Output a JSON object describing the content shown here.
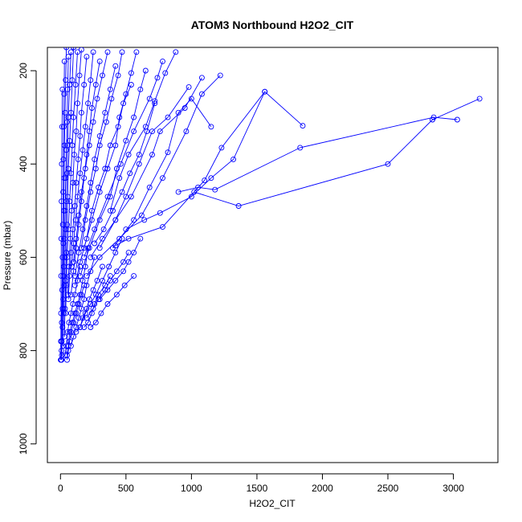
{
  "chart_data": {
    "type": "line",
    "title": "ATOM3 Northbound H2O2_CIT",
    "xlabel": "H2O2_CIT",
    "ylabel": "Pressure (mbar)",
    "xlim": [
      -100,
      3340
    ],
    "ylim": [
      1040,
      150
    ],
    "y_reversed": true,
    "x_ticks": [
      0,
      500,
      1000,
      1500,
      2000,
      2500,
      3000
    ],
    "y_ticks": [
      200,
      400,
      600,
      800,
      1000
    ],
    "grid": false,
    "legend": "none",
    "color": "#0000ff",
    "marker": "open-circle",
    "series": [
      {
        "x": [
          3200,
          2840,
          2500,
          1360,
          1020
        ],
        "y": [
          260,
          305,
          400,
          490,
          460
        ]
      },
      {
        "x": [
          3030,
          2850,
          1830,
          1180,
          1050,
          900
        ],
        "y": [
          305,
          300,
          365,
          455,
          450,
          460
        ]
      },
      {
        "x": [
          1850,
          1560,
          1230,
          1100,
          780,
          520,
          420
        ],
        "y": [
          318,
          245,
          365,
          435,
          535,
          560,
          575
        ]
      },
      {
        "x": [
          1560,
          1320,
          1150,
          1000,
          760,
          640,
          500
        ],
        "y": [
          245,
          390,
          430,
          470,
          505,
          520,
          540
        ]
      },
      {
        "x": [
          1220,
          1080,
          960,
          780,
          620,
          450,
          300,
          200
        ],
        "y": [
          210,
          250,
          330,
          430,
          510,
          560,
          600,
          640
        ]
      },
      {
        "x": [
          1150,
          1000,
          900,
          820,
          680,
          560,
          400
        ],
        "y": [
          320,
          260,
          290,
          375,
          450,
          520,
          580
        ]
      },
      {
        "x": [
          1080,
          950,
          760,
          700,
          540,
          420,
          300
        ],
        "y": [
          215,
          280,
          330,
          380,
          470,
          520,
          580
        ]
      },
      {
        "x": [
          980,
          820,
          700,
          600,
          500,
          420,
          320,
          230
        ],
        "y": [
          235,
          300,
          330,
          400,
          470,
          520,
          560,
          600
        ]
      },
      {
        "x": [
          880,
          800,
          720,
          650,
          520,
          450,
          380
        ],
        "y": [
          160,
          205,
          265,
          320,
          380,
          430,
          500
        ]
      },
      {
        "x": [
          780,
          740,
          680,
          560,
          460,
          360,
          260,
          180
        ],
        "y": [
          180,
          215,
          260,
          330,
          400,
          470,
          540,
          600
        ]
      },
      {
        "x": [
          720,
          660,
          600,
          530,
          470,
          400,
          330,
          260
        ],
        "y": [
          270,
          330,
          380,
          420,
          460,
          500,
          540,
          570
        ]
      },
      {
        "x": [
          650,
          610,
          560,
          500,
          430,
          380,
          300,
          220,
          150
        ],
        "y": [
          200,
          240,
          300,
          350,
          410,
          470,
          520,
          580,
          640
        ]
      },
      {
        "x": [
          580,
          540,
          500,
          450,
          420,
          360,
          300,
          240,
          180
        ],
        "y": [
          160,
          205,
          250,
          300,
          360,
          410,
          460,
          520,
          580
        ]
      },
      {
        "x": [
          540,
          480,
          440,
          380,
          340,
          290,
          240,
          200,
          150,
          110
        ],
        "y": [
          230,
          270,
          320,
          360,
          410,
          450,
          500,
          560,
          610,
          660
        ]
      },
      {
        "x": [
          470,
          440,
          390,
          350,
          300,
          270,
          230,
          190,
          160
        ],
        "y": [
          160,
          210,
          260,
          310,
          360,
          410,
          460,
          520,
          580
        ]
      },
      {
        "x": [
          420,
          380,
          340,
          300,
          260,
          230,
          200,
          170,
          140,
          110
        ],
        "y": [
          190,
          240,
          290,
          340,
          390,
          440,
          490,
          540,
          590,
          640
        ]
      },
      {
        "x": [
          360,
          320,
          280,
          250,
          220,
          190,
          160,
          140,
          120,
          100
        ],
        "y": [
          160,
          210,
          260,
          310,
          360,
          410,
          460,
          510,
          560,
          610
        ]
      },
      {
        "x": [
          300,
          270,
          240,
          220,
          200,
          180,
          160,
          140,
          120,
          100,
          80
        ],
        "y": [
          180,
          230,
          280,
          330,
          380,
          430,
          480,
          530,
          580,
          630,
          680
        ]
      },
      {
        "x": [
          250,
          230,
          210,
          190,
          170,
          150,
          130,
          115,
          100,
          85
        ],
        "y": [
          160,
          220,
          270,
          320,
          370,
          420,
          470,
          520,
          570,
          620
        ]
      },
      {
        "x": [
          200,
          180,
          160,
          150,
          135,
          120,
          110,
          95,
          80,
          70,
          60
        ],
        "y": [
          170,
          230,
          290,
          340,
          390,
          440,
          490,
          540,
          590,
          640,
          690
        ]
      },
      {
        "x": [
          160,
          145,
          130,
          120,
          105,
          95,
          85,
          75,
          65,
          55
        ],
        "y": [
          155,
          210,
          270,
          330,
          380,
          440,
          500,
          560,
          620,
          680
        ]
      },
      {
        "x": [
          130,
          115,
          100,
          90,
          80,
          70,
          60,
          50,
          45,
          40
        ],
        "y": [
          160,
          230,
          300,
          360,
          420,
          480,
          540,
          600,
          660,
          720
        ]
      },
      {
        "x": [
          100,
          90,
          80,
          70,
          60,
          55,
          50,
          45,
          40,
          35,
          30
        ],
        "y": [
          150,
          220,
          290,
          350,
          410,
          470,
          530,
          590,
          650,
          710,
          770
        ]
      },
      {
        "x": [
          80,
          70,
          60,
          55,
          50,
          45,
          40,
          35,
          30,
          25,
          20
        ],
        "y": [
          160,
          230,
          300,
          360,
          420,
          480,
          540,
          600,
          660,
          720,
          790
        ]
      },
      {
        "x": [
          60,
          55,
          50,
          45,
          40,
          35,
          30,
          25,
          20,
          15,
          10
        ],
        "y": [
          170,
          240,
          310,
          370,
          430,
          500,
          560,
          620,
          690,
          750,
          810
        ]
      },
      {
        "x": [
          45,
          40,
          35,
          30,
          28,
          25,
          22,
          20,
          15,
          10,
          8
        ],
        "y": [
          150,
          220,
          290,
          360,
          430,
          500,
          570,
          640,
          710,
          780,
          820
        ]
      },
      {
        "x": [
          30,
          28,
          25,
          22,
          20,
          18,
          15,
          12,
          10,
          8,
          5
        ],
        "y": [
          180,
          250,
          320,
          390,
          460,
          530,
          600,
          670,
          740,
          800,
          820
        ]
      },
      {
        "x": [
          15,
          12,
          10,
          8,
          6,
          5,
          4,
          3,
          2
        ],
        "y": [
          240,
          320,
          400,
          480,
          560,
          640,
          720,
          780,
          820
        ]
      },
      {
        "x": [
          380,
          340,
          290,
          260,
          240,
          210,
          180
        ],
        "y": [
          640,
          660,
          680,
          700,
          720,
          740,
          750
        ]
      },
      {
        "x": [
          320,
          280,
          250,
          220,
          200,
          170,
          150,
          120
        ],
        "y": [
          620,
          650,
          670,
          690,
          710,
          730,
          750,
          760
        ]
      },
      {
        "x": [
          260,
          230,
          200,
          180,
          160,
          140,
          120,
          100,
          80
        ],
        "y": [
          600,
          630,
          660,
          690,
          710,
          730,
          750,
          770,
          790
        ]
      },
      {
        "x": [
          210,
          190,
          170,
          150,
          130,
          110,
          90,
          70,
          60,
          50
        ],
        "y": [
          580,
          620,
          650,
          680,
          700,
          720,
          740,
          760,
          790,
          810
        ]
      },
      {
        "x": [
          180,
          160,
          140,
          120,
          100,
          80,
          70,
          60,
          50
        ],
        "y": [
          660,
          680,
          700,
          720,
          740,
          760,
          780,
          800,
          820
        ]
      },
      {
        "x": [
          150,
          130,
          110,
          95,
          80,
          65,
          55,
          45,
          35
        ],
        "y": [
          620,
          650,
          680,
          700,
          720,
          740,
          760,
          790,
          810
        ]
      },
      {
        "x": [
          610,
          560,
          520,
          480,
          420,
          360,
          300
        ],
        "y": [
          560,
          590,
          610,
          630,
          650,
          670,
          690
        ]
      },
      {
        "x": [
          520,
          480,
          430,
          380,
          340,
          290,
          250,
          200
        ],
        "y": [
          590,
          610,
          630,
          650,
          670,
          690,
          710,
          730
        ]
      },
      {
        "x": [
          560,
          490,
          430,
          360,
          310,
          270,
          230
        ],
        "y": [
          640,
          660,
          680,
          700,
          720,
          740,
          750
        ]
      },
      {
        "x": [
          470,
          420,
          370,
          320,
          270,
          230,
          190,
          150
        ],
        "y": [
          560,
          590,
          620,
          650,
          680,
          700,
          720,
          750
        ]
      }
    ]
  }
}
